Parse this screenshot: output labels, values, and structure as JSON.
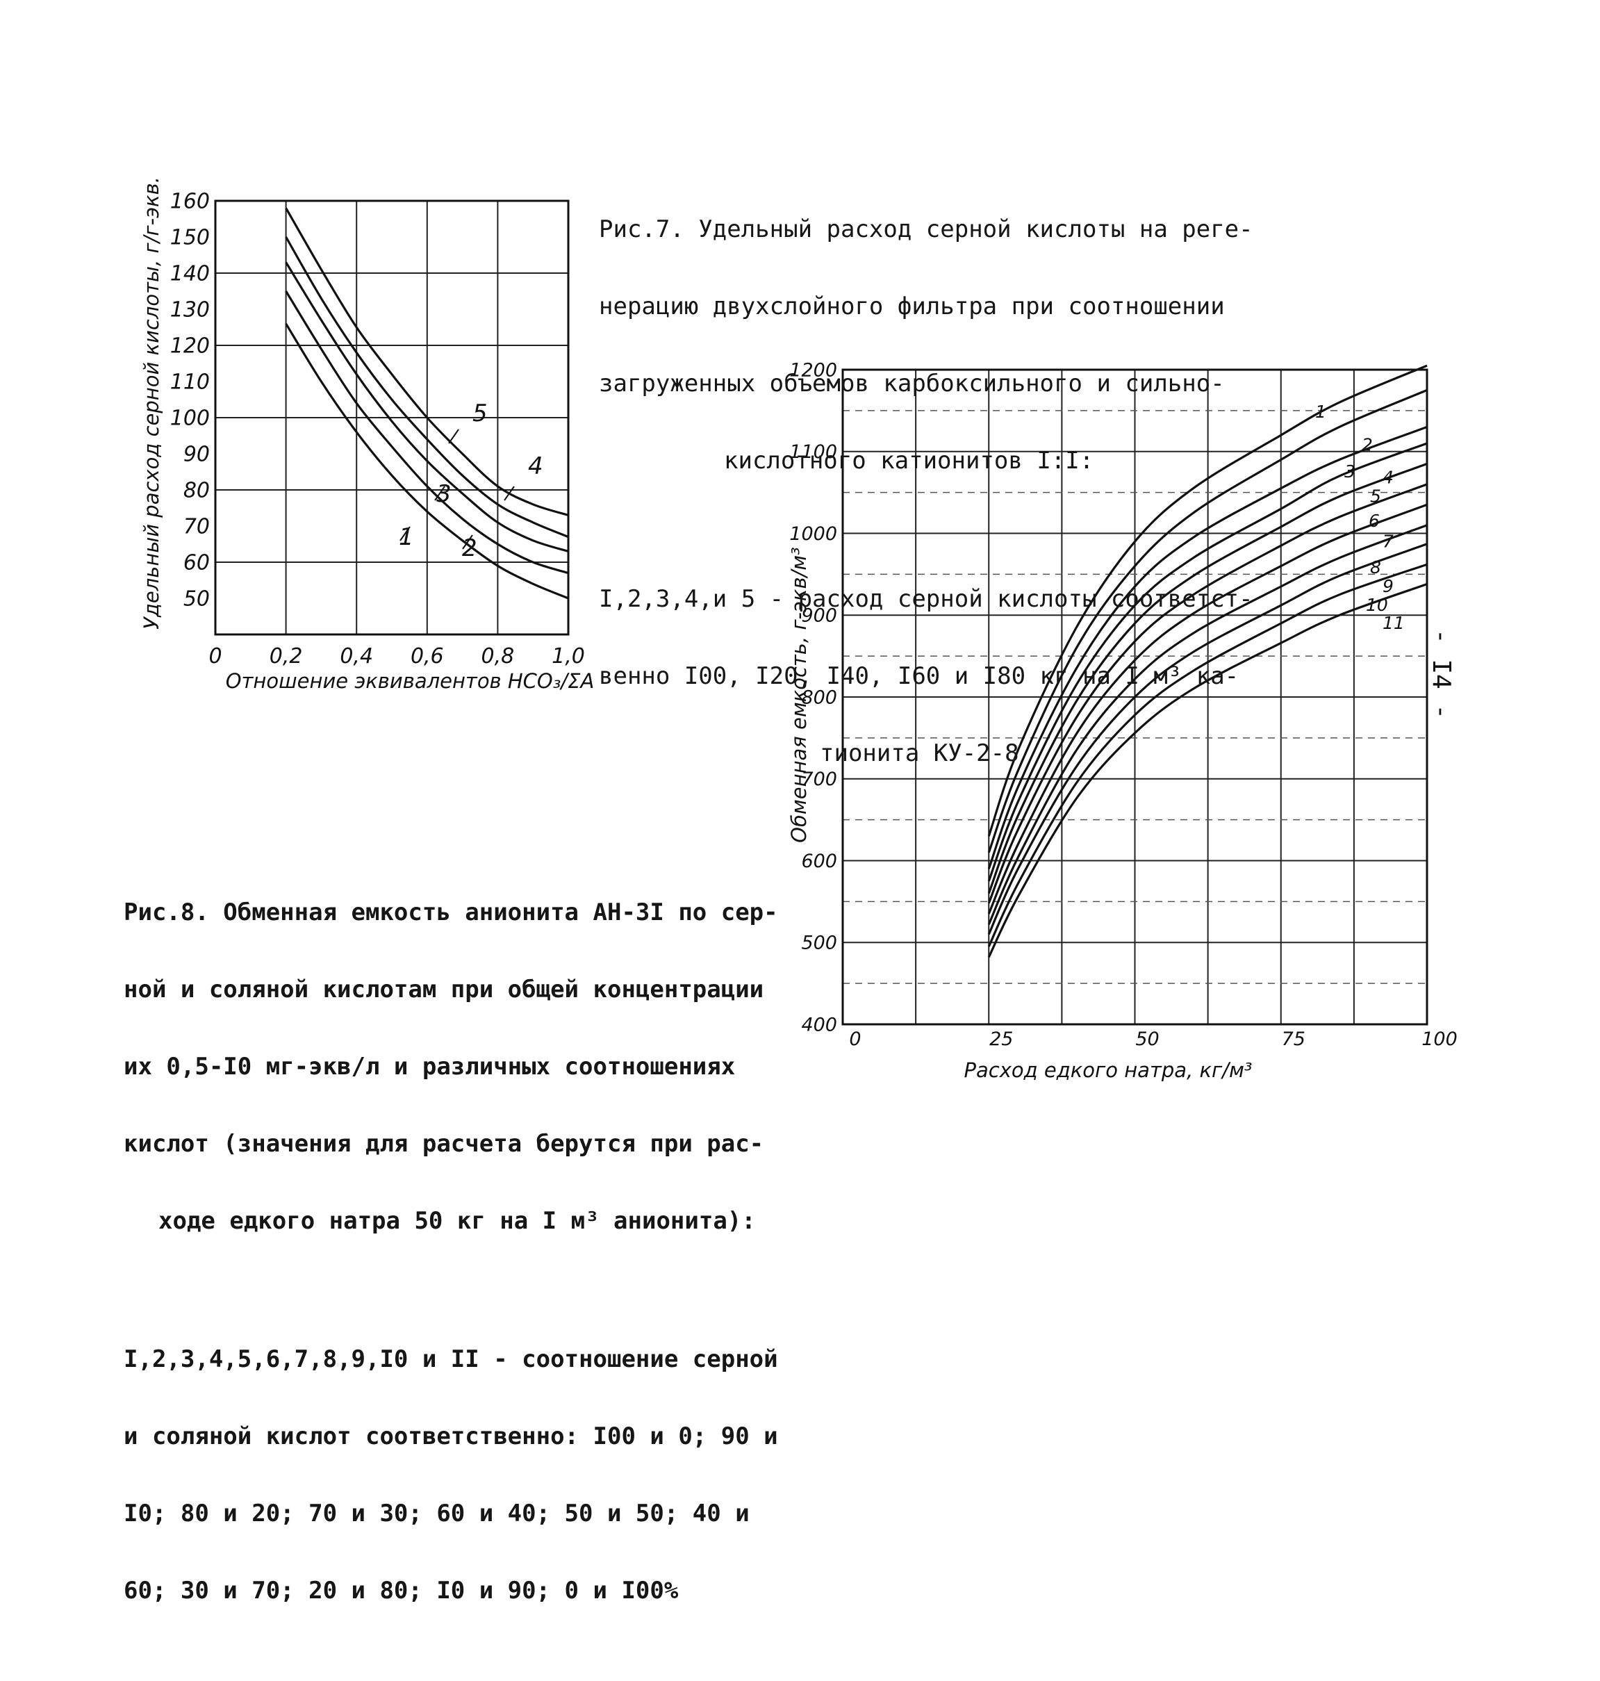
{
  "page": {
    "number": "- I4 -"
  },
  "figure7": {
    "caption": [
      "Рис.7. Удельный расход серной кислоты на реге-",
      "нерацию двухслойного фильтра при соотношении",
      "загруженных объемов карбоксильного и сильно-",
      "кислотного катионитов I:I:"
    ],
    "legend": [
      "I,2,3,4,и 5 - расход серной кислоты соответст-",
      "венно I00, I20, I40, I60 и I80 кг на I м³ ка-",
      "тионита КУ-2-8"
    ]
  },
  "figure8": {
    "caption": [
      "Рис.8. Обменная емкость анионита АН-3I по сер-",
      "ной и соляной кислотам при общей концентрации",
      "их 0,5-I0 мг-экв/л и различных соотношениях",
      "кислот (значения для расчета берутся при рас-",
      "ходе едкого натра 50 кг на I м³ анионита):"
    ],
    "legend": [
      "I,2,3,4,5,6,7,8,9,I0 и II - соотношение серной",
      "и соляной кислот соответственно: I00 и 0; 90 и",
      "I0; 80 и 20; 70 и 30; 60 и 40; 50 и 50; 40 и",
      "60; 30 и 70; 20 и 80; I0 и 90; 0 и I00%"
    ]
  },
  "chart_data": [
    {
      "type": "line",
      "xlabel": "Отношение эквивалентов HCO₃/ΣA",
      "ylabel": "Удельный расход серной кислоты, г/г-экв.",
      "xlim": [
        0,
        1.0
      ],
      "ylim": [
        40,
        160
      ],
      "x_ticks": [
        "0",
        "0,2",
        "0,4",
        "0,6",
        "0,8",
        "1,0"
      ],
      "y_ticks": [
        "50",
        "60",
        "70",
        "80",
        "90",
        "100",
        "110",
        "120",
        "130",
        "140",
        "150",
        "160"
      ],
      "grid": true,
      "series": [
        {
          "name": "1",
          "x": [
            0.2,
            0.3,
            0.4,
            0.5,
            0.6,
            0.7,
            0.8,
            0.9,
            1.0
          ],
          "y": [
            126,
            110,
            96,
            84,
            74,
            66,
            59,
            54,
            50
          ]
        },
        {
          "name": "2",
          "x": [
            0.2,
            0.3,
            0.4,
            0.5,
            0.6,
            0.7,
            0.8,
            0.9,
            1.0
          ],
          "y": [
            135,
            119,
            104,
            92,
            81,
            72,
            65,
            60,
            57
          ]
        },
        {
          "name": "3",
          "x": [
            0.2,
            0.3,
            0.4,
            0.5,
            0.6,
            0.7,
            0.8,
            0.9,
            1.0
          ],
          "y": [
            143,
            127,
            112,
            99,
            88,
            79,
            71,
            66,
            63
          ]
        },
        {
          "name": "4",
          "x": [
            0.2,
            0.3,
            0.4,
            0.5,
            0.6,
            0.7,
            0.8,
            0.9,
            1.0
          ],
          "y": [
            150,
            133,
            118,
            105,
            94,
            84,
            76,
            71,
            67
          ]
        },
        {
          "name": "5",
          "x": [
            0.2,
            0.3,
            0.4,
            0.5,
            0.6,
            0.7,
            0.8,
            0.9,
            1.0
          ],
          "y": [
            158,
            141,
            125,
            112,
            100,
            90,
            81,
            76,
            73
          ]
        }
      ]
    },
    {
      "type": "line",
      "xlabel": "Расход едкого натра, кг/м³",
      "ylabel": "Обменная емкость, г-экв/м³",
      "xlim": [
        0,
        100
      ],
      "ylim": [
        400,
        1200
      ],
      "x_ticks": [
        "0",
        "25",
        "50",
        "75",
        "100"
      ],
      "y_ticks": [
        "400",
        "500",
        "600",
        "700",
        "800",
        "900",
        "1000",
        "1100",
        "1200"
      ],
      "grid": true,
      "series": [
        {
          "name": "1",
          "x": [
            25,
            30,
            40,
            50,
            60,
            75,
            85,
            100
          ],
          "y": [
            630,
            735,
            885,
            990,
            1055,
            1120,
            1160,
            1205
          ]
        },
        {
          "name": "2",
          "x": [
            25,
            30,
            40,
            50,
            60,
            75,
            85,
            100
          ],
          "y": [
            610,
            710,
            860,
            960,
            1025,
            1090,
            1130,
            1175
          ]
        },
        {
          "name": "3",
          "x": [
            25,
            30,
            40,
            50,
            60,
            75,
            85,
            100
          ],
          "y": [
            590,
            690,
            835,
            935,
            995,
            1055,
            1090,
            1130
          ]
        },
        {
          "name": "4",
          "x": [
            25,
            30,
            40,
            50,
            60,
            75,
            85,
            100
          ],
          "y": [
            575,
            672,
            815,
            912,
            970,
            1030,
            1070,
            1110
          ]
        },
        {
          "name": "5",
          "x": [
            25,
            30,
            40,
            50,
            60,
            75,
            85,
            100
          ],
          "y": [
            560,
            655,
            795,
            890,
            948,
            1008,
            1045,
            1085
          ]
        },
        {
          "name": "6",
          "x": [
            25,
            30,
            40,
            50,
            60,
            75,
            85,
            100
          ],
          "y": [
            548,
            638,
            775,
            868,
            925,
            985,
            1020,
            1060
          ]
        },
        {
          "name": "7",
          "x": [
            25,
            30,
            40,
            50,
            60,
            75,
            85,
            100
          ],
          "y": [
            535,
            620,
            755,
            845,
            902,
            960,
            995,
            1035
          ]
        },
        {
          "name": "8",
          "x": [
            25,
            30,
            40,
            50,
            60,
            75,
            85,
            100
          ],
          "y": [
            522,
            604,
            735,
            822,
            878,
            935,
            970,
            1010
          ]
        },
        {
          "name": "9",
          "x": [
            25,
            30,
            40,
            50,
            60,
            75,
            85,
            100
          ],
          "y": [
            510,
            590,
            715,
            800,
            855,
            912,
            948,
            987
          ]
        },
        {
          "name": "10",
          "x": [
            25,
            30,
            40,
            50,
            60,
            75,
            85,
            100
          ],
          "y": [
            495,
            572,
            695,
            778,
            832,
            890,
            925,
            962
          ]
        },
        {
          "name": "11",
          "x": [
            25,
            30,
            40,
            50,
            60,
            75,
            85,
            100
          ],
          "y": [
            482,
            556,
            676,
            756,
            810,
            866,
            900,
            938
          ]
        }
      ]
    }
  ]
}
